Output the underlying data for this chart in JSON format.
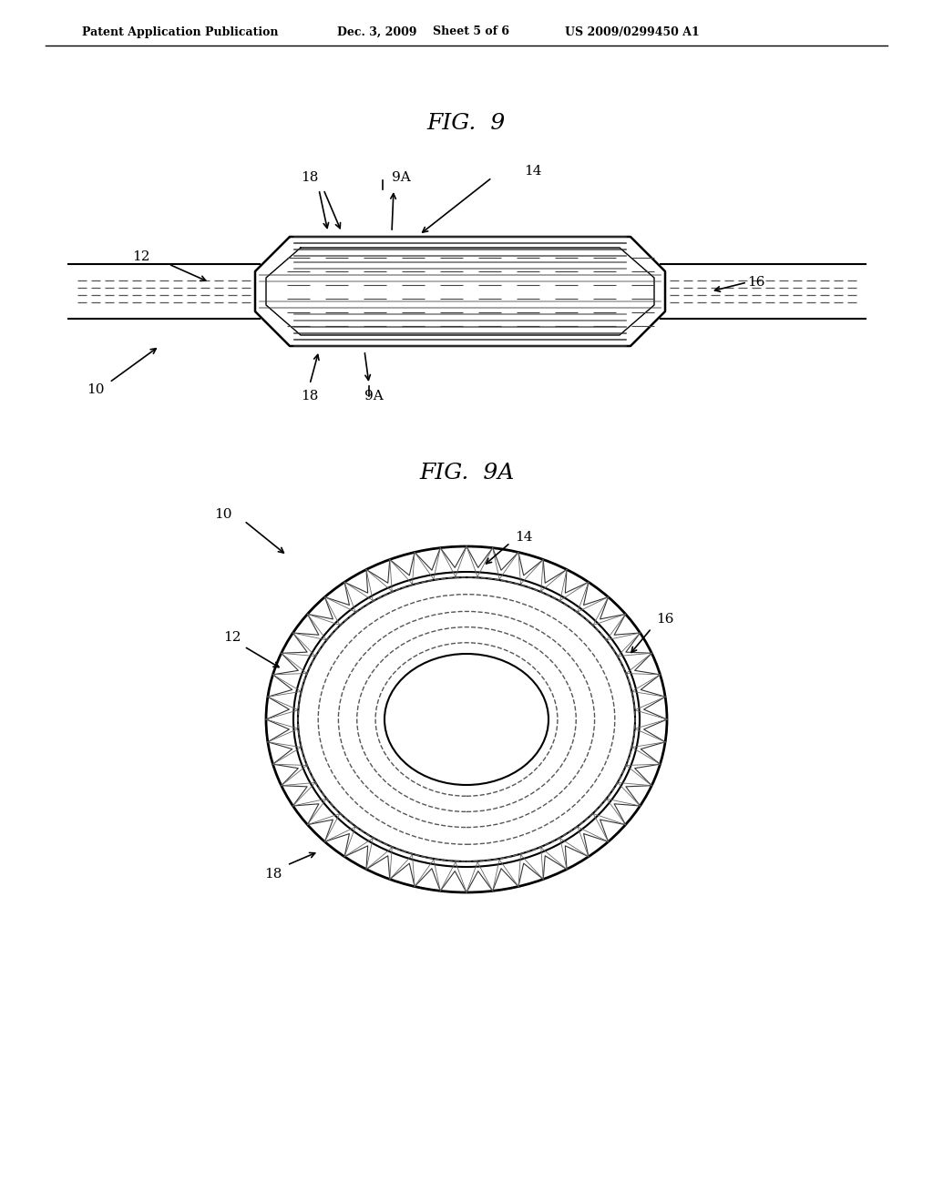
{
  "bg_color": "#ffffff",
  "header_text": "Patent Application Publication",
  "header_date": "Dec. 3, 2009",
  "header_sheet": "Sheet 5 of 6",
  "header_patent": "US 2009/0299450 A1",
  "fig9_title": "FIG.  9",
  "fig9a_title": "FIG.  9A",
  "label_color": "#000000",
  "line_color": "#000000",
  "dash_color": "#555555"
}
